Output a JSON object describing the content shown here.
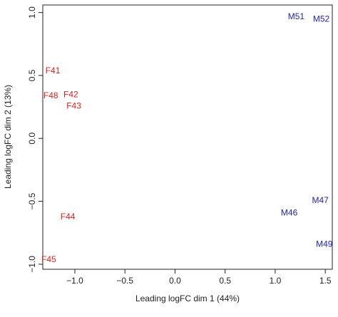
{
  "chart_data": {
    "type": "scatter",
    "title": "",
    "xlabel": "Leading logFC dim 1 (44%)",
    "ylabel": "Leading logFC dim 2 (13%)",
    "xlim": [
      -1.32,
      1.57
    ],
    "ylim": [
      -1.04,
      1.06
    ],
    "xticks": [
      -1.0,
      -0.5,
      0.0,
      0.5,
      1.0,
      1.5
    ],
    "xtick_labels": [
      "−1.0",
      "−0.5",
      "0.0",
      "0.5",
      "1.0",
      "1.5"
    ],
    "yticks": [
      -1.0,
      -0.5,
      0.0,
      0.5,
      1.0
    ],
    "ytick_labels": [
      "−1.0",
      "−0.5",
      "0.0",
      "0.5",
      "1.0"
    ],
    "grid": false,
    "colors": {
      "F": "#dd2222",
      "M": "#2222bb"
    },
    "points": [
      {
        "label": "F41",
        "x": -1.22,
        "y": 0.54,
        "group": "F"
      },
      {
        "label": "F48",
        "x": -1.24,
        "y": 0.34,
        "group": "F"
      },
      {
        "label": "F42",
        "x": -1.04,
        "y": 0.35,
        "group": "F"
      },
      {
        "label": "F43",
        "x": -1.01,
        "y": 0.26,
        "group": "F"
      },
      {
        "label": "F44",
        "x": -1.07,
        "y": -0.62,
        "group": "F"
      },
      {
        "label": "F45",
        "x": -1.26,
        "y": -0.96,
        "group": "F"
      },
      {
        "label": "M51",
        "x": 1.21,
        "y": 0.97,
        "group": "M"
      },
      {
        "label": "M52",
        "x": 1.46,
        "y": 0.95,
        "group": "M"
      },
      {
        "label": "M47",
        "x": 1.45,
        "y": -0.49,
        "group": "M"
      },
      {
        "label": "M46",
        "x": 1.14,
        "y": -0.59,
        "group": "M"
      },
      {
        "label": "M49",
        "x": 1.49,
        "y": -0.84,
        "group": "M"
      }
    ]
  }
}
